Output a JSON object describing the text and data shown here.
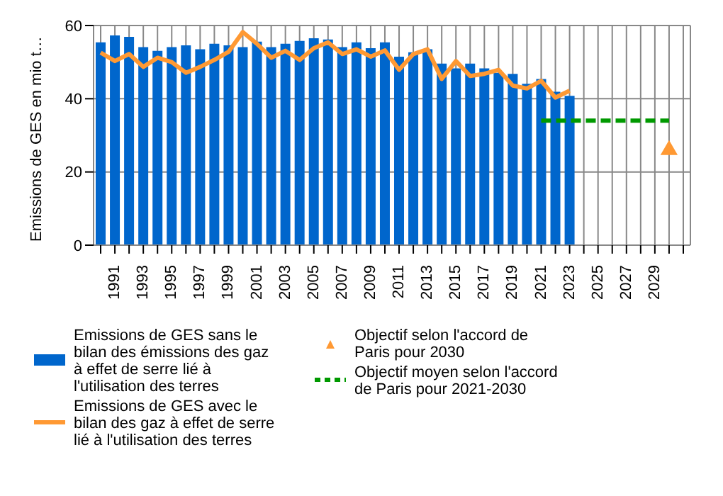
{
  "chart_data": {
    "type": "bar",
    "ylabel": "Emissions de GES en mio t…",
    "categories": [
      null,
      "1991",
      null,
      "1993",
      null,
      "1995",
      null,
      "1997",
      null,
      "1999",
      null,
      "2001",
      null,
      "2003",
      null,
      "2005",
      null,
      "2007",
      null,
      "2009",
      null,
      "2011",
      null,
      "2013",
      null,
      "2015",
      null,
      "2017",
      null,
      "2019",
      null,
      "2021",
      null,
      "2023",
      null,
      "2025",
      null,
      "2027",
      null,
      "2029",
      null,
      null
    ],
    "series": [
      {
        "name": "Emissions de GES sans le bilan des émissions des gaz à effet de serre lié à l'utilisation des terres",
        "color": "#0066cc",
        "values": [
          55.4,
          57.3,
          56.9,
          54.1,
          53.1,
          54.1,
          54.6,
          53.5,
          55.0,
          54.6,
          54.1,
          55.6,
          54.1,
          55.0,
          55.8,
          56.5,
          56.2,
          54.1,
          55.4,
          53.8,
          55.4,
          51.5,
          52.7,
          53.5,
          49.6,
          48.3,
          49.6,
          48.3,
          47.1,
          46.8,
          44.1,
          45.4,
          41.9,
          40.8,
          null,
          null,
          null,
          null,
          null,
          null,
          null,
          null
        ]
      },
      {
        "type": "line",
        "name": "Emissions de GES avec le bilan des gaz à effet de serre lié à l'utilisation des terres",
        "color": "#ff9933",
        "line_style": "solid",
        "values": [
          52.6,
          50.3,
          52.2,
          48.7,
          51.2,
          50.0,
          47.1,
          48.7,
          50.6,
          52.8,
          58.2,
          55.0,
          51.2,
          53.1,
          50.6,
          53.8,
          55.4,
          52.2,
          53.5,
          51.5,
          53.2,
          47.9,
          52.2,
          53.5,
          45.4,
          50.3,
          46.2,
          46.8,
          47.9,
          43.6,
          42.8,
          44.9,
          40.3,
          42.2,
          null,
          null,
          null,
          null,
          null,
          null,
          null,
          null
        ]
      },
      {
        "type": "scatter",
        "name": "Objectif selon l'accord de Paris pour 2030",
        "color": "#ff9933",
        "marker": "triangle",
        "values": [
          null,
          null,
          null,
          null,
          null,
          null,
          null,
          null,
          null,
          null,
          null,
          null,
          null,
          null,
          null,
          null,
          null,
          null,
          null,
          null,
          null,
          null,
          null,
          null,
          null,
          null,
          null,
          null,
          null,
          null,
          null,
          null,
          null,
          null,
          null,
          null,
          null,
          null,
          null,
          null,
          26,
          null
        ]
      },
      {
        "type": "line",
        "name": "Objectif moyen selon l'accord de Paris pour 2021-2030",
        "color": "#009900",
        "line_style": "dashed",
        "values": [
          null,
          null,
          null,
          null,
          null,
          null,
          null,
          null,
          null,
          null,
          null,
          null,
          null,
          null,
          null,
          null,
          null,
          null,
          null,
          null,
          null,
          null,
          null,
          null,
          null,
          null,
          null,
          null,
          null,
          null,
          null,
          34,
          34,
          34,
          34,
          34,
          34,
          34,
          34,
          34,
          34,
          null
        ]
      }
    ],
    "ylim": [
      0,
      60
    ],
    "yticks": [
      0,
      20,
      40,
      60
    ],
    "grid": true,
    "legend": "bottom"
  }
}
